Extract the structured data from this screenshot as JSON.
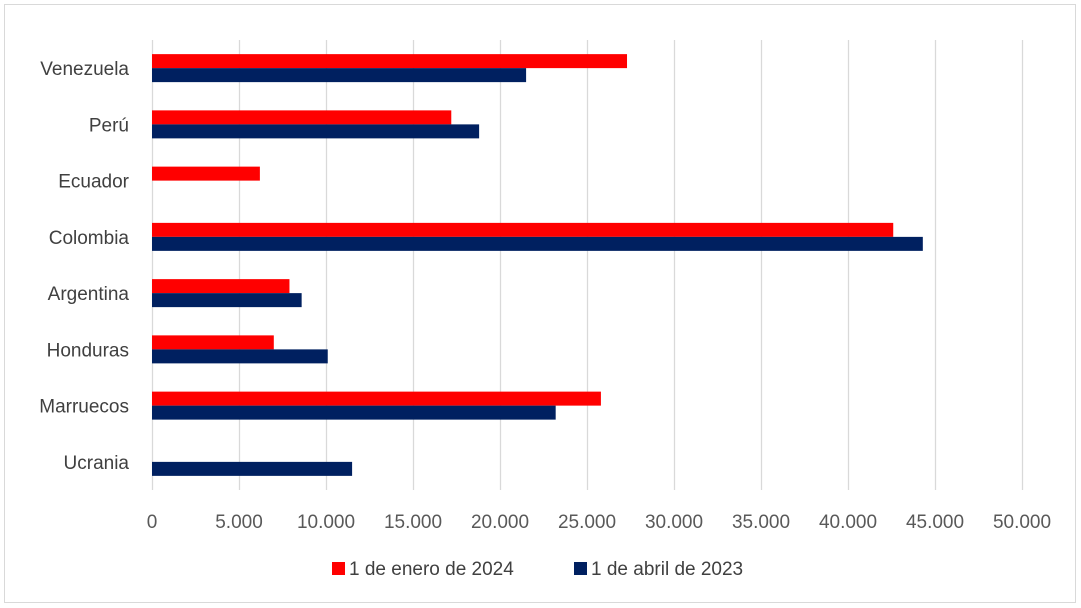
{
  "chart_data": {
    "type": "bar",
    "orientation": "horizontal",
    "categories": [
      "Venezuela",
      "Perú",
      "Ecuador",
      "Colombia",
      "Argentina",
      "Honduras",
      "Marruecos",
      "Ucrania"
    ],
    "series": [
      {
        "name": "1 de enero de 2024",
        "color": "#ff0000",
        "values": [
          27300,
          17200,
          6200,
          42600,
          7900,
          7000,
          25800,
          0
        ]
      },
      {
        "name": "1 de abril de 2023",
        "color": "#002060",
        "values": [
          21500,
          18800,
          0,
          44300,
          8600,
          10100,
          23200,
          11500
        ]
      }
    ],
    "xlim": [
      0,
      50000
    ],
    "x_ticks": [
      0,
      5000,
      10000,
      15000,
      20000,
      25000,
      30000,
      35000,
      40000,
      45000,
      50000
    ],
    "x_tick_labels": [
      "0",
      "5.000",
      "10.000",
      "15.000",
      "20.000",
      "25.000",
      "30.000",
      "35.000",
      "40.000",
      "45.000",
      "50.000"
    ],
    "grid": "vertical",
    "legend_position": "bottom"
  }
}
